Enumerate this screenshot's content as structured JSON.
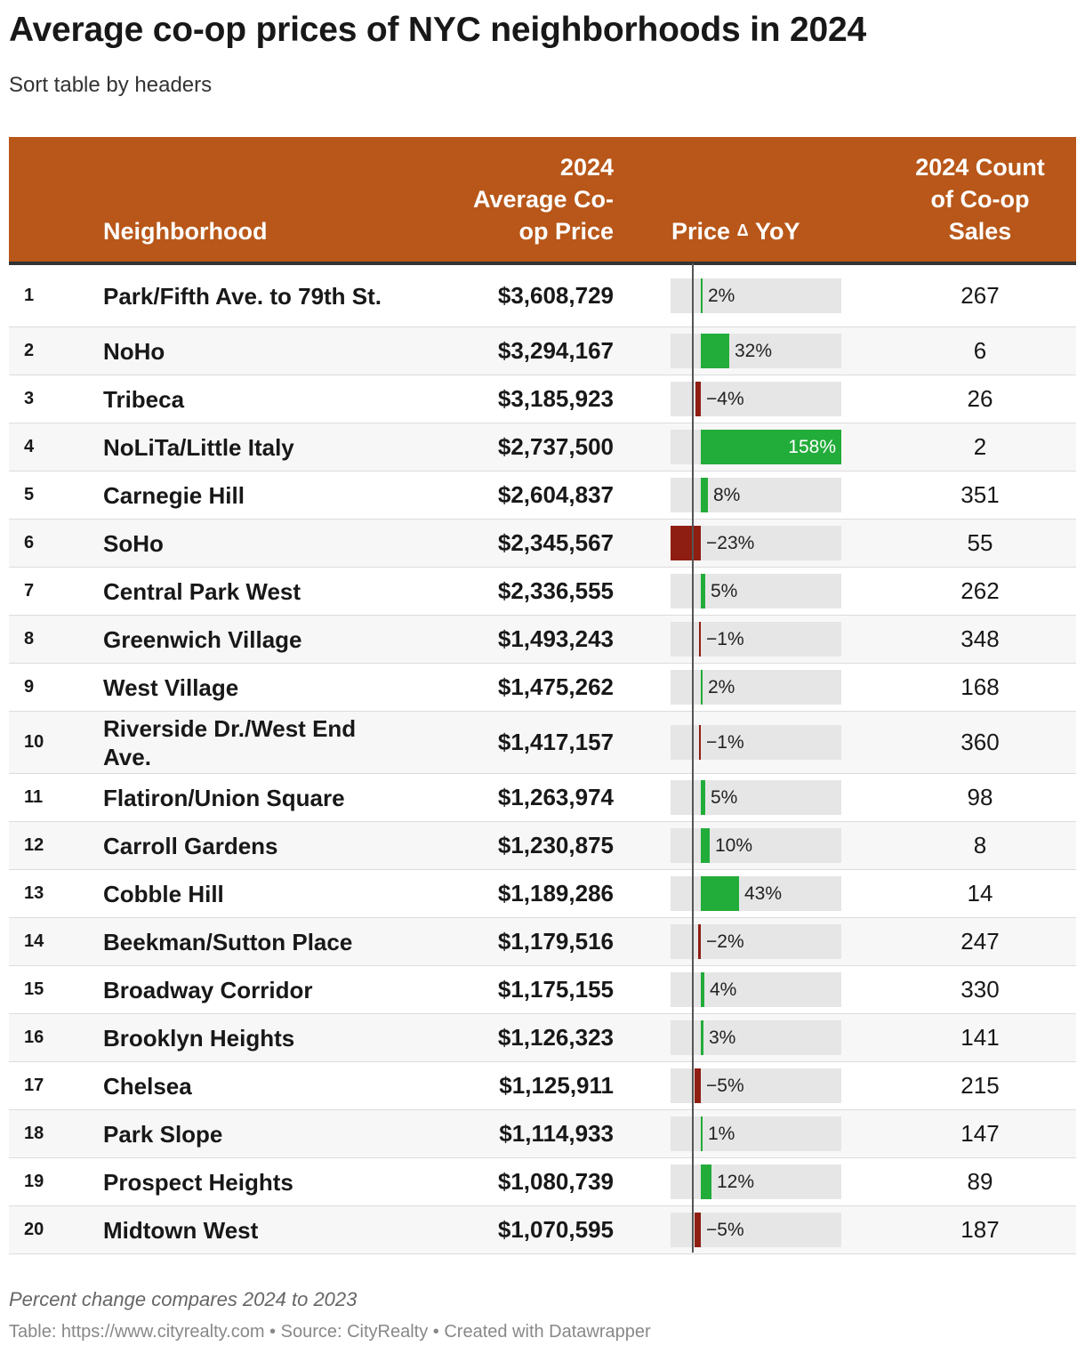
{
  "title": "Average co-op prices of NYC neighborhoods in 2024",
  "subtitle": "Sort table by headers",
  "headers": {
    "neighborhood": "Neighborhood",
    "price_line1": "2024",
    "price_line2": "Average Co-",
    "price_line3": "op Price",
    "yoy_a": "Price",
    "yoy_icon": "Δ",
    "yoy_b": "YoY",
    "count_line1": "2024 Count",
    "count_line2": "of Co-op",
    "count_line3": "Sales"
  },
  "colors": {
    "header_bg": "#b85719",
    "positive": "#22ac3a",
    "negative": "#8f1e12",
    "bar_bg": "#e6e6e6"
  },
  "chart_data": {
    "type": "table",
    "title": "Average co-op prices of NYC neighborhoods in 2024",
    "columns": [
      "",
      "Neighborhood",
      "2024 Average Co-op Price",
      "Price Δ YoY",
      "2024 Count of Co-op Sales"
    ],
    "yoy_range": [
      -23,
      158
    ],
    "rows": [
      {
        "rank": "1",
        "neighborhood": "Park/Fifth Ave. to 79th St.",
        "price": "$3,608,729",
        "yoy": 2,
        "yoy_label": "2%",
        "count": "267"
      },
      {
        "rank": "2",
        "neighborhood": "NoHo",
        "price": "$3,294,167",
        "yoy": 32,
        "yoy_label": "32%",
        "count": "6"
      },
      {
        "rank": "3",
        "neighborhood": "Tribeca",
        "price": "$3,185,923",
        "yoy": -4,
        "yoy_label": "−4%",
        "count": "26"
      },
      {
        "rank": "4",
        "neighborhood": "NoLiTa/Little Italy",
        "price": "$2,737,500",
        "yoy": 158,
        "yoy_label": "158%",
        "count": "2"
      },
      {
        "rank": "5",
        "neighborhood": "Carnegie Hill",
        "price": "$2,604,837",
        "yoy": 8,
        "yoy_label": "8%",
        "count": "351"
      },
      {
        "rank": "6",
        "neighborhood": "SoHo",
        "price": "$2,345,567",
        "yoy": -23,
        "yoy_label": "−23%",
        "count": "55"
      },
      {
        "rank": "7",
        "neighborhood": "Central Park West",
        "price": "$2,336,555",
        "yoy": 5,
        "yoy_label": "5%",
        "count": "262"
      },
      {
        "rank": "8",
        "neighborhood": "Greenwich Village",
        "price": "$1,493,243",
        "yoy": -1,
        "yoy_label": "−1%",
        "count": "348"
      },
      {
        "rank": "9",
        "neighborhood": "West Village",
        "price": "$1,475,262",
        "yoy": 2,
        "yoy_label": "2%",
        "count": "168"
      },
      {
        "rank": "10",
        "neighborhood": "Riverside Dr./West End Ave.",
        "price": "$1,417,157",
        "yoy": -1,
        "yoy_label": "−1%",
        "count": "360"
      },
      {
        "rank": "11",
        "neighborhood": "Flatiron/Union Square",
        "price": "$1,263,974",
        "yoy": 5,
        "yoy_label": "5%",
        "count": "98"
      },
      {
        "rank": "12",
        "neighborhood": "Carroll Gardens",
        "price": "$1,230,875",
        "yoy": 10,
        "yoy_label": "10%",
        "count": "8"
      },
      {
        "rank": "13",
        "neighborhood": "Cobble Hill",
        "price": "$1,189,286",
        "yoy": 43,
        "yoy_label": "43%",
        "count": "14"
      },
      {
        "rank": "14",
        "neighborhood": "Beekman/Sutton Place",
        "price": "$1,179,516",
        "yoy": -2,
        "yoy_label": "−2%",
        "count": "247"
      },
      {
        "rank": "15",
        "neighborhood": "Broadway Corridor",
        "price": "$1,175,155",
        "yoy": 4,
        "yoy_label": "4%",
        "count": "330"
      },
      {
        "rank": "16",
        "neighborhood": "Brooklyn Heights",
        "price": "$1,126,323",
        "yoy": 3,
        "yoy_label": "3%",
        "count": "141"
      },
      {
        "rank": "17",
        "neighborhood": "Chelsea",
        "price": "$1,125,911",
        "yoy": -5,
        "yoy_label": "−5%",
        "count": "215"
      },
      {
        "rank": "18",
        "neighborhood": "Park Slope",
        "price": "$1,114,933",
        "yoy": 1,
        "yoy_label": "1%",
        "count": "147"
      },
      {
        "rank": "19",
        "neighborhood": "Prospect Heights",
        "price": "$1,080,739",
        "yoy": 12,
        "yoy_label": "12%",
        "count": "89"
      },
      {
        "rank": "20",
        "neighborhood": "Midtown West",
        "price": "$1,070,595",
        "yoy": -5,
        "yoy_label": "−5%",
        "count": "187"
      }
    ]
  },
  "footer": {
    "note": "Percent change compares 2024 to 2023",
    "credit": "Table: https://www.cityrealty.com • Source: CityRealty • Created with Datawrapper"
  }
}
